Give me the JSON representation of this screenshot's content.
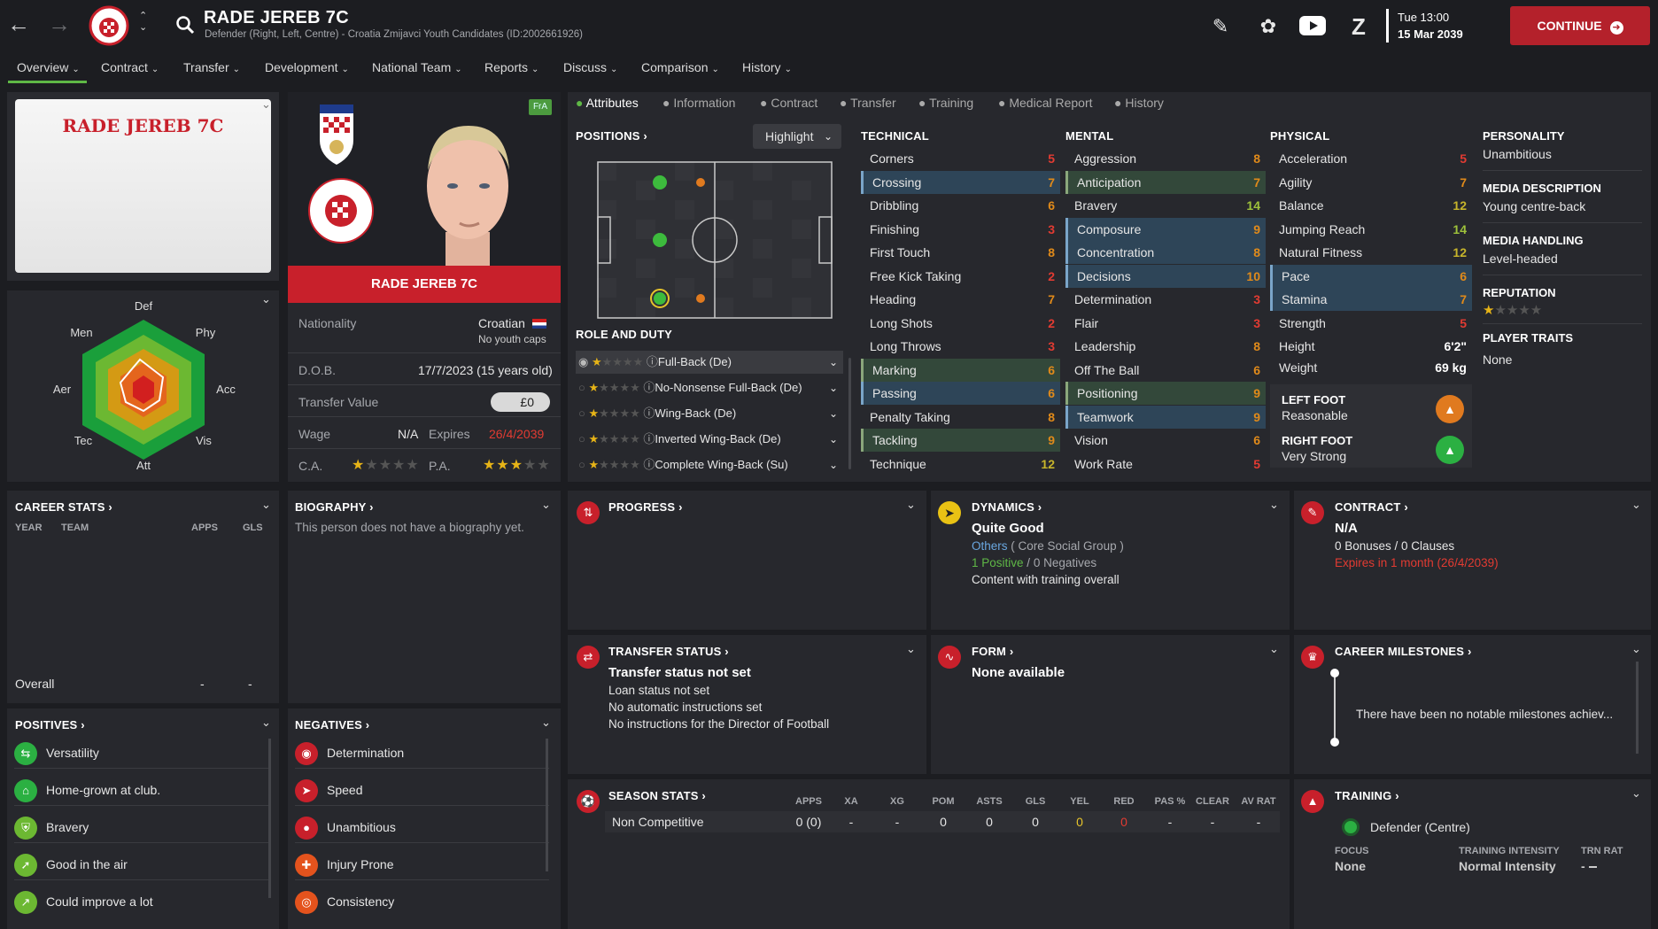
{
  "header": {
    "title": "RADE JEREB 7C",
    "subtitle": "Defender (Right, Left, Centre) - Croatia Zmijavci Youth Candidates (ID:2002661926)",
    "day_time": "Tue 13:00",
    "date": "15 Mar 2039",
    "continue_label": "CONTINUE"
  },
  "tabs": [
    "Overview",
    "Contract",
    "Transfer",
    "Development",
    "National Team",
    "Reports",
    "Discuss",
    "Comparison",
    "History"
  ],
  "subtabs": [
    "Attributes",
    "Information",
    "Contract",
    "Transfer",
    "Training",
    "Medical Report",
    "History"
  ],
  "profile": {
    "card_name": "RADE JEREB 7C",
    "name_banner": "RADE JEREB 7C",
    "badge": "FrA",
    "nationality_label": "Nationality",
    "nationality": "Croatian",
    "youth_caps": "No youth caps",
    "dob_label": "D.O.B.",
    "dob": "17/7/2023 (15 years old)",
    "value_label": "Transfer Value",
    "value": "£0",
    "wage_label": "Wage",
    "wage": "N/A",
    "expires_label": "Expires",
    "expires": "26/4/2039",
    "ca_label": "C.A.",
    "pa_label": "P.A.",
    "ca_stars": 0.5,
    "pa_stars": 2.5
  },
  "radar": {
    "labels": [
      "Def",
      "Phy",
      "Acc",
      "Vis",
      "Att",
      "Tec",
      "Aer",
      "Men"
    ]
  },
  "positions": {
    "title": "POSITIONS",
    "dropdown": "Highlight",
    "role_title": "ROLE AND DUTY",
    "roles": [
      "Full-Back (De)",
      "No-Nonsense Full-Back (De)",
      "Wing-Back (De)",
      "Inverted Wing-Back (De)",
      "Complete Wing-Back (Su)"
    ]
  },
  "technical": {
    "title": "TECHNICAL",
    "attrs": [
      {
        "n": "Corners",
        "v": "5"
      },
      {
        "n": "Crossing",
        "v": "7"
      },
      {
        "n": "Dribbling",
        "v": "6"
      },
      {
        "n": "Finishing",
        "v": "3"
      },
      {
        "n": "First Touch",
        "v": "8"
      },
      {
        "n": "Free Kick Taking",
        "v": "2"
      },
      {
        "n": "Heading",
        "v": "7"
      },
      {
        "n": "Long Shots",
        "v": "2"
      },
      {
        "n": "Long Throws",
        "v": "3"
      },
      {
        "n": "Marking",
        "v": "6"
      },
      {
        "n": "Passing",
        "v": "6"
      },
      {
        "n": "Penalty Taking",
        "v": "8"
      },
      {
        "n": "Tackling",
        "v": "9"
      },
      {
        "n": "Technique",
        "v": "12"
      }
    ]
  },
  "mental": {
    "title": "MENTAL",
    "attrs": [
      {
        "n": "Aggression",
        "v": "8"
      },
      {
        "n": "Anticipation",
        "v": "7"
      },
      {
        "n": "Bravery",
        "v": "14"
      },
      {
        "n": "Composure",
        "v": "9"
      },
      {
        "n": "Concentration",
        "v": "8"
      },
      {
        "n": "Decisions",
        "v": "10"
      },
      {
        "n": "Determination",
        "v": "3"
      },
      {
        "n": "Flair",
        "v": "3"
      },
      {
        "n": "Leadership",
        "v": "8"
      },
      {
        "n": "Off The Ball",
        "v": "6"
      },
      {
        "n": "Positioning",
        "v": "9"
      },
      {
        "n": "Teamwork",
        "v": "9"
      },
      {
        "n": "Vision",
        "v": "6"
      },
      {
        "n": "Work Rate",
        "v": "5"
      }
    ]
  },
  "physical": {
    "title": "PHYSICAL",
    "attrs": [
      {
        "n": "Acceleration",
        "v": "5"
      },
      {
        "n": "Agility",
        "v": "7"
      },
      {
        "n": "Balance",
        "v": "12"
      },
      {
        "n": "Jumping Reach",
        "v": "14"
      },
      {
        "n": "Natural Fitness",
        "v": "12"
      },
      {
        "n": "Pace",
        "v": "6"
      },
      {
        "n": "Stamina",
        "v": "7"
      },
      {
        "n": "Strength",
        "v": "5"
      }
    ],
    "height_label": "Height",
    "height": "6'2\"",
    "weight_label": "Weight",
    "weight": "69 kg",
    "left_foot_label": "LEFT FOOT",
    "left_foot": "Reasonable",
    "right_foot_label": "RIGHT FOOT",
    "right_foot": "Very Strong"
  },
  "side": {
    "personality_label": "PERSONALITY",
    "personality": "Unambitious",
    "media_desc_label": "MEDIA DESCRIPTION",
    "media_desc": "Young centre-back",
    "media_handling_label": "MEDIA HANDLING",
    "media_handling": "Level-headed",
    "reputation_label": "REPUTATION",
    "traits_label": "PLAYER TRAITS",
    "traits": "None"
  },
  "career": {
    "title": "CAREER STATS",
    "col_year": "YEAR",
    "col_team": "TEAM",
    "col_apps": "APPS",
    "col_gls": "GLS",
    "overall": "Overall",
    "apps": "-",
    "gls": "-"
  },
  "biography": {
    "title": "BIOGRAPHY",
    "text": "This person does not have a biography yet."
  },
  "progress": {
    "title": "PROGRESS"
  },
  "dynamics": {
    "title": "DYNAMICS",
    "status": "Quite Good",
    "group": "Others",
    "group_suffix": "( Core Social Group )",
    "positive": "1 Positive",
    "slash": "/",
    "negative": "0 Negatives",
    "note": "Content with training overall"
  },
  "contract_box": {
    "title": "CONTRACT",
    "value": "N/A",
    "bonuses": "0 Bonuses / 0 Clauses",
    "expires": "Expires in 1 month (26/4/2039)"
  },
  "transfer_status": {
    "title": "TRANSFER STATUS",
    "headline": "Transfer status not set",
    "l1": "Loan status not set",
    "l2": "No automatic instructions set",
    "l3": "No instructions for the Director of Football"
  },
  "form": {
    "title": "FORM",
    "text": "None available"
  },
  "milestones": {
    "title": "CAREER MILESTONES",
    "text": "There have been no notable milestones achiev..."
  },
  "positives": {
    "title": "POSITIVES",
    "items": [
      "Versatility",
      "Home-grown at club.",
      "Bravery",
      "Good in the air",
      "Could improve a lot"
    ]
  },
  "negatives": {
    "title": "NEGATIVES",
    "items": [
      "Determination",
      "Speed",
      "Unambitious",
      "Injury Prone",
      "Consistency"
    ]
  },
  "season": {
    "title": "SEASON STATS",
    "cols": [
      "APPS",
      "XA",
      "XG",
      "POM",
      "ASTS",
      "GLS",
      "YEL",
      "RED",
      "PAS %",
      "CLEAR",
      "AV RAT"
    ],
    "row_label": "Non Competitive",
    "vals": [
      "0 (0)",
      "-",
      "-",
      "0",
      "0",
      "0",
      "0",
      "0",
      "-",
      "-",
      "-"
    ]
  },
  "training": {
    "title": "TRAINING",
    "role": "Defender (Centre)",
    "focus_label": "FOCUS",
    "focus": "None",
    "intensity_label": "TRAINING INTENSITY",
    "intensity": "Normal Intensity",
    "trn_label": "TRN RAT",
    "trn": "-"
  },
  "colors": {
    "accent_green": "#5fb846",
    "continue_red": "#b4212b",
    "banner_red": "#c8202b"
  }
}
